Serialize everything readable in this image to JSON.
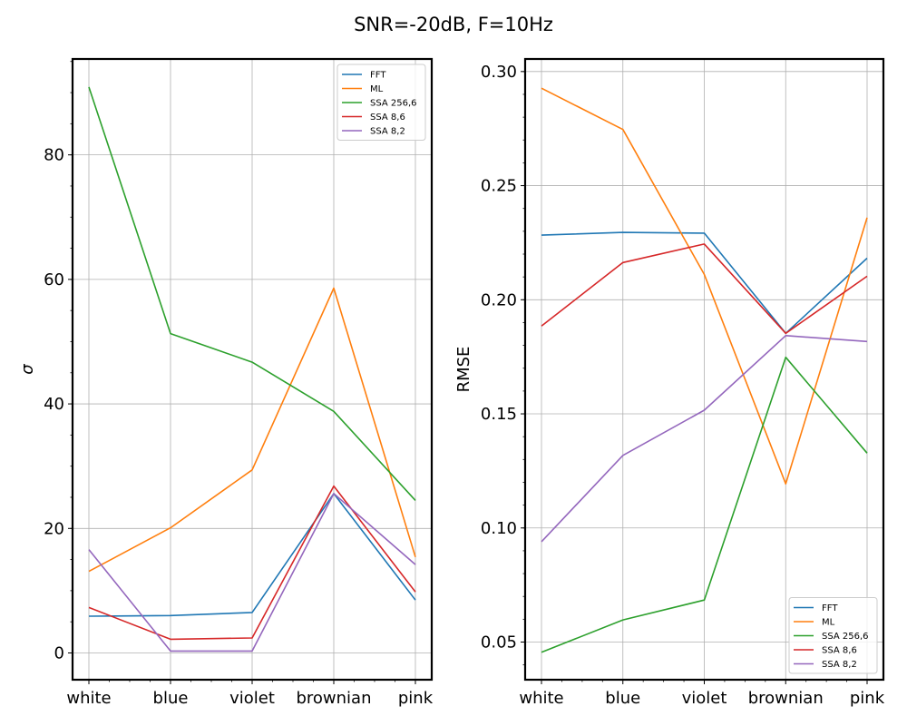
{
  "title": "SNR=-20dB, F=10Hz",
  "colors": {
    "FFT": "#1f77b4",
    "ML": "#ff7f0e",
    "SSA 256,6": "#2ca02c",
    "SSA 8,6": "#d62728",
    "SSA 8,2": "#9467bd",
    "grid": "#b0b0b0"
  },
  "chart_data": [
    {
      "type": "line",
      "title": "",
      "xlabel": "",
      "ylabel": "σ",
      "categories": [
        "white",
        "blue",
        "violet",
        "brownian",
        "pink"
      ],
      "ylim": [
        -4.3,
        95.4
      ],
      "yticks": [
        0,
        20,
        40,
        60,
        80
      ],
      "grid": true,
      "legend": "upper right",
      "series": [
        {
          "name": "FFT",
          "values": [
            5.9,
            6.0,
            6.5,
            25.6,
            8.5
          ]
        },
        {
          "name": "ML",
          "values": [
            13.1,
            20.1,
            29.4,
            58.6,
            15.4
          ]
        },
        {
          "name": "SSA 256,6",
          "values": [
            90.9,
            51.3,
            46.7,
            38.8,
            24.5
          ]
        },
        {
          "name": "SSA 8,6",
          "values": [
            7.3,
            2.2,
            2.4,
            26.8,
            9.8
          ]
        },
        {
          "name": "SSA 8,2",
          "values": [
            16.6,
            0.3,
            0.3,
            25.6,
            14.2
          ]
        }
      ]
    },
    {
      "type": "line",
      "title": "",
      "xlabel": "",
      "ylabel": "RMSE",
      "categories": [
        "white",
        "blue",
        "violet",
        "brownian",
        "pink"
      ],
      "ylim": [
        0.0335,
        0.3055
      ],
      "yticks": [
        "0.05",
        "0.10",
        "0.15",
        "0.20",
        "0.25",
        "0.30"
      ],
      "grid": true,
      "legend": "lower right",
      "series": [
        {
          "name": "FFT",
          "values": [
            0.2283,
            0.2295,
            0.2292,
            0.1853,
            0.2182
          ]
        },
        {
          "name": "ML",
          "values": [
            0.2927,
            0.2746,
            0.2111,
            0.1193,
            0.236
          ]
        },
        {
          "name": "SSA 256,6",
          "values": [
            0.0455,
            0.0597,
            0.0684,
            0.1748,
            0.1328
          ]
        },
        {
          "name": "SSA 8,6",
          "values": [
            0.1885,
            0.2163,
            0.2244,
            0.1853,
            0.2103
          ]
        },
        {
          "name": "SSA 8,2",
          "values": [
            0.094,
            0.1318,
            0.1516,
            0.1843,
            0.1817
          ]
        }
      ]
    }
  ]
}
